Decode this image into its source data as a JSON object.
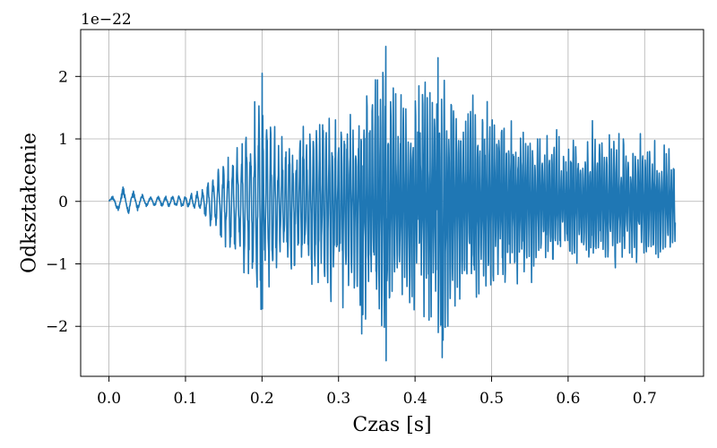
{
  "chart_data": {
    "type": "line",
    "title": "",
    "xlabel": "Czas [s]",
    "ylabel": "Odkształcenie",
    "y_offset_label": "1e−22",
    "xlim": [
      -0.037,
      0.777
    ],
    "ylim": [
      -2.8,
      2.75
    ],
    "xticks": [
      0.0,
      0.1,
      0.2,
      0.3,
      0.4,
      0.5,
      0.6,
      0.7
    ],
    "xtick_labels": [
      "0.0",
      "0.1",
      "0.2",
      "0.3",
      "0.4",
      "0.5",
      "0.6",
      "0.7"
    ],
    "yticks": [
      -2,
      -1,
      0,
      1,
      2
    ],
    "ytick_labels": [
      "−2",
      "−1",
      "0",
      "1",
      "2"
    ],
    "grid": true,
    "series": [
      {
        "color": "#1f77b4",
        "x_range": [
          0.0,
          0.74
        ],
        "envelope": [
          [
            0.0,
            0.03
          ],
          [
            0.02,
            0.25
          ],
          [
            0.05,
            0.08
          ],
          [
            0.1,
            0.1
          ],
          [
            0.12,
            0.15
          ],
          [
            0.14,
            0.55
          ],
          [
            0.16,
            0.9
          ],
          [
            0.18,
            1.2
          ],
          [
            0.2,
            1.8
          ],
          [
            0.22,
            1.0
          ],
          [
            0.24,
            1.2
          ],
          [
            0.26,
            1.3
          ],
          [
            0.28,
            1.5
          ],
          [
            0.3,
            1.6
          ],
          [
            0.32,
            1.5
          ],
          [
            0.33,
            1.9
          ],
          [
            0.36,
            2.4
          ],
          [
            0.38,
            1.8
          ],
          [
            0.4,
            1.8
          ],
          [
            0.42,
            1.9
          ],
          [
            0.43,
            2.3
          ],
          [
            0.46,
            1.6
          ],
          [
            0.5,
            1.5
          ],
          [
            0.52,
            1.4
          ],
          [
            0.55,
            1.2
          ],
          [
            0.6,
            1.0
          ],
          [
            0.63,
            1.2
          ],
          [
            0.65,
            1.1
          ],
          [
            0.7,
            1.0
          ],
          [
            0.74,
            0.8
          ]
        ],
        "peaks": [
          [
            0.2,
            2.05
          ],
          [
            0.2,
            -1.72
          ],
          [
            0.33,
            -2.12
          ],
          [
            0.362,
            2.48
          ],
          [
            0.362,
            -2.55
          ],
          [
            0.405,
            1.85
          ],
          [
            0.418,
            -1.9
          ],
          [
            0.43,
            2.3
          ],
          [
            0.435,
            -2.5
          ]
        ]
      }
    ]
  }
}
